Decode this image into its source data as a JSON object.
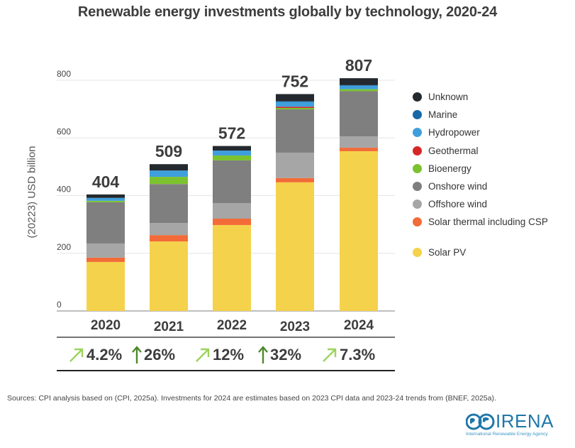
{
  "chart_data": {
    "type": "bar",
    "stacked": true,
    "title": "Renewable energy investments globally by technology, 2020-24",
    "xlabel": "",
    "ylabel": "(20223) USD billion",
    "ylim": [
      0,
      800
    ],
    "yticks": [
      0,
      200,
      400,
      600,
      800
    ],
    "grid": true,
    "legend_position": "right",
    "categories": [
      "2020",
      "2021",
      "2022",
      "2023",
      "2024"
    ],
    "totals": [
      404,
      509,
      572,
      752,
      807
    ],
    "series": [
      {
        "name": "Solar PV",
        "color": "#f5d24b",
        "values": [
          170,
          241,
          298,
          446,
          554
        ]
      },
      {
        "name": "Solar thermal including CSP",
        "color": "#f26b38",
        "values": [
          15,
          22,
          22,
          15,
          12
        ]
      },
      {
        "name": "Offshore wind",
        "color": "#a6a6a6",
        "values": [
          49,
          42,
          54,
          88,
          39
        ]
      },
      {
        "name": "Onshore wind",
        "color": "#7f7f7f",
        "values": [
          143,
          135,
          148,
          150,
          157
        ]
      },
      {
        "name": "Bioenergy",
        "color": "#7cc22f",
        "values": [
          5,
          25,
          17,
          5,
          7
        ]
      },
      {
        "name": "Geothermal",
        "color": "#d62728",
        "values": [
          0,
          0,
          0,
          4,
          0
        ]
      },
      {
        "name": "Hydropower",
        "color": "#3f9fdc",
        "values": [
          10,
          22,
          17,
          17,
          12
        ]
      },
      {
        "name": "Marine",
        "color": "#1668a6",
        "values": [
          0,
          0,
          0,
          2,
          2
        ]
      },
      {
        "name": "Unknown",
        "color": "#23292e",
        "values": [
          12,
          22,
          16,
          25,
          24
        ]
      }
    ],
    "legend_order": [
      "Unknown",
      "Marine",
      "Hydropower",
      "Geothermal",
      "Bioenergy",
      "Onshore wind",
      "Offshore wind",
      "Solar thermal including CSP",
      "Solar PV"
    ],
    "growth_rates": [
      {
        "label": "4.2%",
        "arrow": "diagonal",
        "color": "#9bd45a"
      },
      {
        "label": "26%",
        "arrow": "up",
        "color": "#4d8a2a"
      },
      {
        "label": "12%",
        "arrow": "diagonal",
        "color": "#9bd45a"
      },
      {
        "label": "32%",
        "arrow": "up",
        "color": "#4d8a2a"
      },
      {
        "label": "7.3%",
        "arrow": "diagonal",
        "color": "#9bd45a"
      }
    ]
  },
  "source_note": "Sources: CPI analysis based on (CPI, 2025a). Investments for 2024 are estimates based on 2023 CPI data and 2023-24 trends from (BNEF, 2025a).",
  "logo": {
    "name": "IRENA",
    "subtitle": "International Renewable Energy Agency"
  }
}
